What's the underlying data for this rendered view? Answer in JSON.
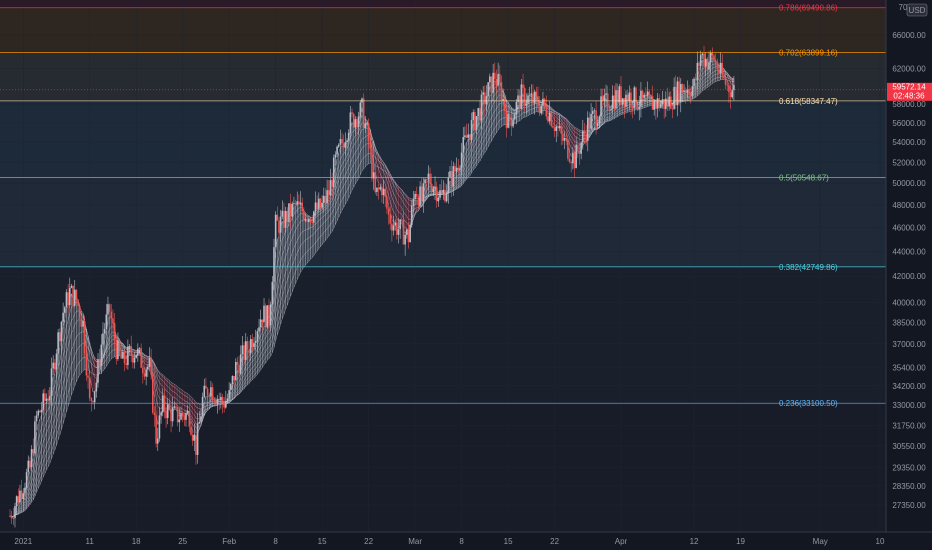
{
  "currency_label": "USD",
  "y_axis_cut_label": "70",
  "last_price_label": "59572.14",
  "last_price_sub_label": "02:48:36",
  "chart_data": {
    "type": "candlestick",
    "title": "",
    "y_scale": "log",
    "ylim": [
      26000,
      70500
    ],
    "y_ticks": [
      66000,
      62000,
      58000,
      56000,
      54000,
      52000,
      50000,
      48000,
      46000,
      44000,
      42000,
      40000,
      38500,
      37000,
      35400,
      34200,
      33000,
      31750,
      30550,
      29350,
      28350,
      27350
    ],
    "y_tick_labels": [
      "66000.00",
      "62000.00",
      "58000.00",
      "56000.00",
      "54000.00",
      "52000.00",
      "50000.00",
      "48000.00",
      "46000.00",
      "44000.00",
      "42000.00",
      "40000.00",
      "38500.00",
      "37000.00",
      "35400.00",
      "34200.00",
      "33000.00",
      "31750.00",
      "30550.00",
      "29350.00",
      "28350.00",
      "27350.00"
    ],
    "x_range": [
      "2020-12-30",
      "2021-05-10"
    ],
    "x_ticks": [
      {
        "date": "2021-01-01",
        "label": "2021"
      },
      {
        "date": "2021-01-11",
        "label": "11"
      },
      {
        "date": "2021-01-18",
        "label": "18"
      },
      {
        "date": "2021-01-25",
        "label": "25"
      },
      {
        "date": "2021-02-01",
        "label": "Feb"
      },
      {
        "date": "2021-02-08",
        "label": "8"
      },
      {
        "date": "2021-02-15",
        "label": "15"
      },
      {
        "date": "2021-02-22",
        "label": "22"
      },
      {
        "date": "2021-03-01",
        "label": "Mar"
      },
      {
        "date": "2021-03-08",
        "label": "8"
      },
      {
        "date": "2021-03-15",
        "label": "15"
      },
      {
        "date": "2021-03-22",
        "label": "22"
      },
      {
        "date": "2021-04-01",
        "label": "Apr"
      },
      {
        "date": "2021-04-12",
        "label": "12"
      },
      {
        "date": "2021-04-19",
        "label": "19"
      },
      {
        "date": "2021-05-01",
        "label": "May"
      },
      {
        "date": "2021-05-10",
        "label": "10"
      }
    ],
    "fib_levels": [
      {
        "level": 0.786,
        "price": 69490.86,
        "label": "0.786(69490.86)",
        "color": "#f23645"
      },
      {
        "level": 0.702,
        "price": 63899.16,
        "label": "0.702(63899.16)",
        "color": "#ff9800"
      },
      {
        "level": 0.618,
        "price": 58347.47,
        "label": "0.618(58347.47)",
        "color": "#ffe0b2"
      },
      {
        "level": 0.5,
        "price": 50548.67,
        "label": "0.5(50548.67)",
        "color": "#81c784"
      },
      {
        "level": 0.382,
        "price": 42749.86,
        "label": "0.382(42749.86)",
        "color": "#4dd0e1"
      },
      {
        "level": 0.236,
        "price": 33100.5,
        "label": "0.236(33100.50)",
        "color": "#64b5f6"
      }
    ],
    "last_price": 59572.14,
    "close_series": [
      {
        "date": "2020-12-30",
        "close": 26800
      },
      {
        "date": "2021-01-02",
        "close": 29300
      },
      {
        "date": "2021-01-03",
        "close": 32200
      },
      {
        "date": "2021-01-05",
        "close": 33900
      },
      {
        "date": "2021-01-06",
        "close": 36800
      },
      {
        "date": "2021-01-07",
        "close": 39300
      },
      {
        "date": "2021-01-08",
        "close": 40800
      },
      {
        "date": "2021-01-09",
        "close": 40200
      },
      {
        "date": "2021-01-10",
        "close": 38400
      },
      {
        "date": "2021-01-11",
        "close": 33100
      },
      {
        "date": "2021-01-12",
        "close": 34500
      },
      {
        "date": "2021-01-13",
        "close": 37800
      },
      {
        "date": "2021-01-14",
        "close": 39400
      },
      {
        "date": "2021-01-15",
        "close": 36700
      },
      {
        "date": "2021-01-16",
        "close": 35700
      },
      {
        "date": "2021-01-17",
        "close": 36300
      },
      {
        "date": "2021-01-18",
        "close": 36500
      },
      {
        "date": "2021-01-19",
        "close": 35600
      },
      {
        "date": "2021-01-20",
        "close": 35400
      },
      {
        "date": "2021-01-21",
        "close": 31000
      },
      {
        "date": "2021-01-22",
        "close": 32900
      },
      {
        "date": "2021-01-24",
        "close": 32300
      },
      {
        "date": "2021-01-26",
        "close": 32400
      },
      {
        "date": "2021-01-27",
        "close": 30500
      },
      {
        "date": "2021-01-28",
        "close": 33300
      },
      {
        "date": "2021-01-29",
        "close": 34200
      },
      {
        "date": "2021-01-31",
        "close": 33100
      },
      {
        "date": "2021-02-01",
        "close": 33500
      },
      {
        "date": "2021-02-02",
        "close": 35400
      },
      {
        "date": "2021-02-04",
        "close": 36900
      },
      {
        "date": "2021-02-06",
        "close": 39200
      },
      {
        "date": "2021-02-07",
        "close": 38800
      },
      {
        "date": "2021-02-08",
        "close": 46200
      },
      {
        "date": "2021-02-09",
        "close": 46500
      },
      {
        "date": "2021-02-11",
        "close": 47900
      },
      {
        "date": "2021-02-13",
        "close": 47100
      },
      {
        "date": "2021-02-15",
        "close": 47900
      },
      {
        "date": "2021-02-16",
        "close": 49100
      },
      {
        "date": "2021-02-17",
        "close": 52100
      },
      {
        "date": "2021-02-19",
        "close": 55900
      },
      {
        "date": "2021-02-21",
        "close": 57400
      },
      {
        "date": "2021-02-22",
        "close": 54100
      },
      {
        "date": "2021-02-23",
        "close": 48800
      },
      {
        "date": "2021-02-24",
        "close": 49700
      },
      {
        "date": "2021-02-25",
        "close": 47000
      },
      {
        "date": "2021-02-26",
        "close": 46200
      },
      {
        "date": "2021-02-28",
        "close": 45200
      },
      {
        "date": "2021-03-01",
        "close": 49600
      },
      {
        "date": "2021-03-02",
        "close": 48400
      },
      {
        "date": "2021-03-03",
        "close": 50500
      },
      {
        "date": "2021-03-05",
        "close": 48800
      },
      {
        "date": "2021-03-07",
        "close": 51200
      },
      {
        "date": "2021-03-09",
        "close": 54900
      },
      {
        "date": "2021-03-11",
        "close": 57800
      },
      {
        "date": "2021-03-13",
        "close": 61200
      },
      {
        "date": "2021-03-14",
        "close": 59300
      },
      {
        "date": "2021-03-15",
        "close": 55900
      },
      {
        "date": "2021-03-17",
        "close": 58900
      },
      {
        "date": "2021-03-19",
        "close": 58300
      },
      {
        "date": "2021-03-21",
        "close": 57400
      },
      {
        "date": "2021-03-23",
        "close": 54500
      },
      {
        "date": "2021-03-25",
        "close": 52300
      },
      {
        "date": "2021-03-27",
        "close": 55800
      },
      {
        "date": "2021-03-29",
        "close": 57600
      },
      {
        "date": "2021-03-31",
        "close": 58800
      },
      {
        "date": "2021-04-02",
        "close": 59000
      },
      {
        "date": "2021-04-04",
        "close": 58200
      },
      {
        "date": "2021-04-06",
        "close": 58100
      },
      {
        "date": "2021-04-08",
        "close": 58100
      },
      {
        "date": "2021-04-10",
        "close": 59800
      },
      {
        "date": "2021-04-12",
        "close": 60000
      },
      {
        "date": "2021-04-13",
        "close": 63600
      },
      {
        "date": "2021-04-14",
        "close": 62900
      },
      {
        "date": "2021-04-15",
        "close": 63200
      },
      {
        "date": "2021-04-16",
        "close": 61300
      },
      {
        "date": "2021-04-17",
        "close": 60000
      },
      {
        "date": "2021-04-18",
        "close": 59572
      }
    ]
  }
}
